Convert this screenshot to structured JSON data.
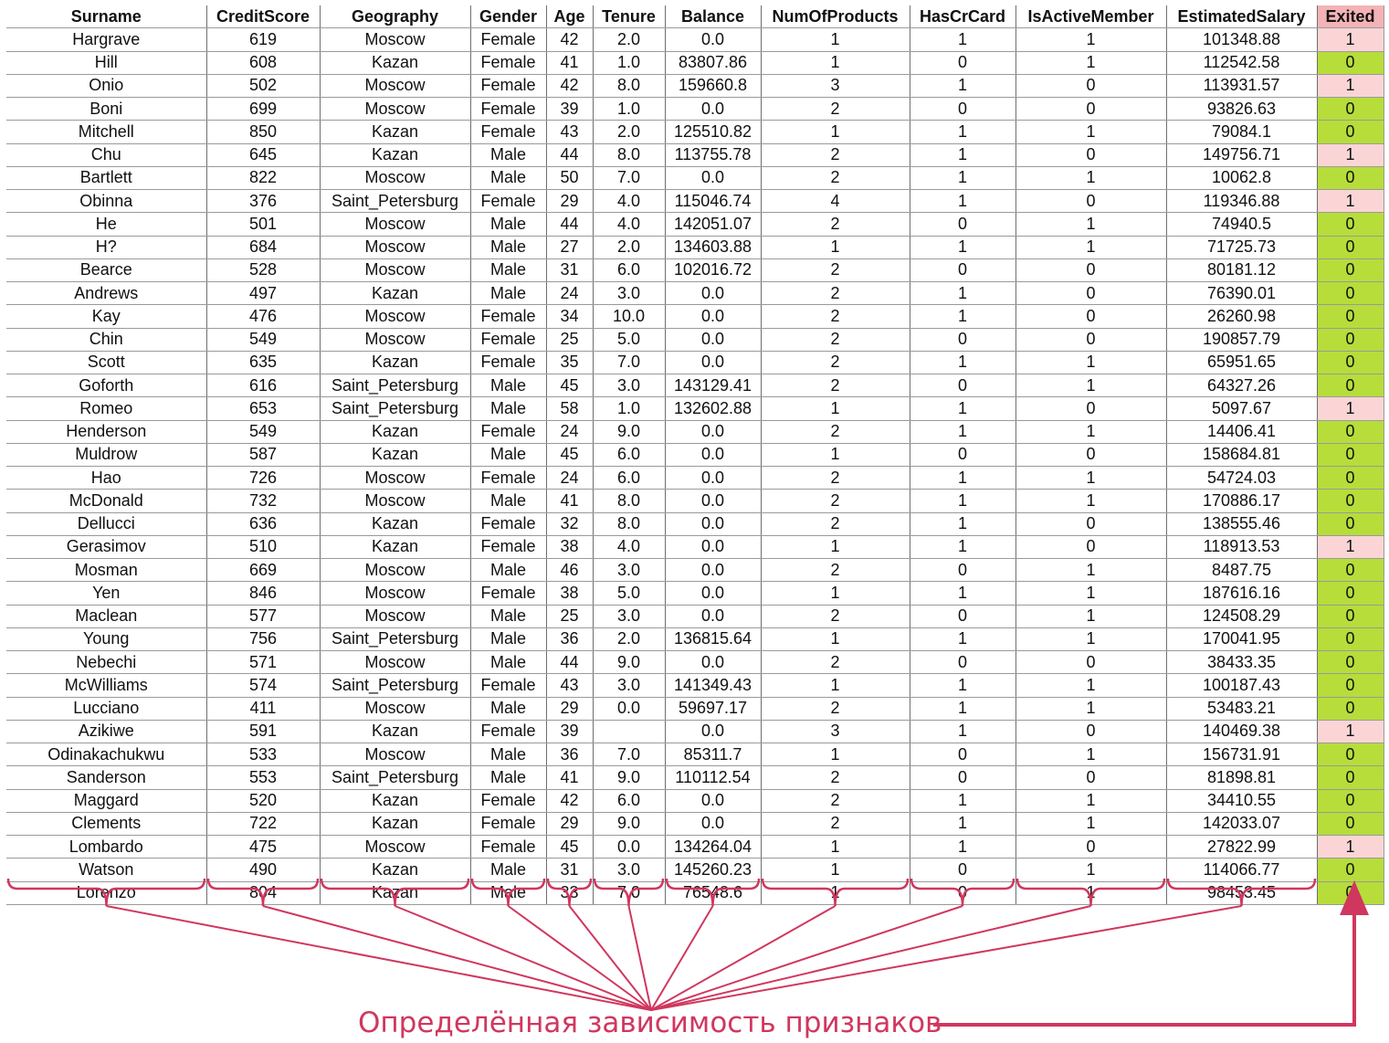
{
  "table": {
    "columns": [
      "Surname",
      "CreditScore",
      "Geography",
      "Gender",
      "Age",
      "Tenure",
      "Balance",
      "NumOfProducts",
      "HasCrCard",
      "IsActiveMember",
      "EstimatedSalary",
      "Exited"
    ],
    "rows": [
      [
        "Hargrave",
        "619",
        "Moscow",
        "Female",
        "42",
        "2.0",
        "0.0",
        "1",
        "1",
        "1",
        "101348.88",
        "1"
      ],
      [
        "Hill",
        "608",
        "Kazan",
        "Female",
        "41",
        "1.0",
        "83807.86",
        "1",
        "0",
        "1",
        "112542.58",
        "0"
      ],
      [
        "Onio",
        "502",
        "Moscow",
        "Female",
        "42",
        "8.0",
        "159660.8",
        "3",
        "1",
        "0",
        "113931.57",
        "1"
      ],
      [
        "Boni",
        "699",
        "Moscow",
        "Female",
        "39",
        "1.0",
        "0.0",
        "2",
        "0",
        "0",
        "93826.63",
        "0"
      ],
      [
        "Mitchell",
        "850",
        "Kazan",
        "Female",
        "43",
        "2.0",
        "125510.82",
        "1",
        "1",
        "1",
        "79084.1",
        "0"
      ],
      [
        "Chu",
        "645",
        "Kazan",
        "Male",
        "44",
        "8.0",
        "113755.78",
        "2",
        "1",
        "0",
        "149756.71",
        "1"
      ],
      [
        "Bartlett",
        "822",
        "Moscow",
        "Male",
        "50",
        "7.0",
        "0.0",
        "2",
        "1",
        "1",
        "10062.8",
        "0"
      ],
      [
        "Obinna",
        "376",
        "Saint_Petersburg",
        "Female",
        "29",
        "4.0",
        "115046.74",
        "4",
        "1",
        "0",
        "119346.88",
        "1"
      ],
      [
        "He",
        "501",
        "Moscow",
        "Male",
        "44",
        "4.0",
        "142051.07",
        "2",
        "0",
        "1",
        "74940.5",
        "0"
      ],
      [
        "H?",
        "684",
        "Moscow",
        "Male",
        "27",
        "2.0",
        "134603.88",
        "1",
        "1",
        "1",
        "71725.73",
        "0"
      ],
      [
        "Bearce",
        "528",
        "Moscow",
        "Male",
        "31",
        "6.0",
        "102016.72",
        "2",
        "0",
        "0",
        "80181.12",
        "0"
      ],
      [
        "Andrews",
        "497",
        "Kazan",
        "Male",
        "24",
        "3.0",
        "0.0",
        "2",
        "1",
        "0",
        "76390.01",
        "0"
      ],
      [
        "Kay",
        "476",
        "Moscow",
        "Female",
        "34",
        "10.0",
        "0.0",
        "2",
        "1",
        "0",
        "26260.98",
        "0"
      ],
      [
        "Chin",
        "549",
        "Moscow",
        "Female",
        "25",
        "5.0",
        "0.0",
        "2",
        "0",
        "0",
        "190857.79",
        "0"
      ],
      [
        "Scott",
        "635",
        "Kazan",
        "Female",
        "35",
        "7.0",
        "0.0",
        "2",
        "1",
        "1",
        "65951.65",
        "0"
      ],
      [
        "Goforth",
        "616",
        "Saint_Petersburg",
        "Male",
        "45",
        "3.0",
        "143129.41",
        "2",
        "0",
        "1",
        "64327.26",
        "0"
      ],
      [
        "Romeo",
        "653",
        "Saint_Petersburg",
        "Male",
        "58",
        "1.0",
        "132602.88",
        "1",
        "1",
        "0",
        "5097.67",
        "1"
      ],
      [
        "Henderson",
        "549",
        "Kazan",
        "Female",
        "24",
        "9.0",
        "0.0",
        "2",
        "1",
        "1",
        "14406.41",
        "0"
      ],
      [
        "Muldrow",
        "587",
        "Kazan",
        "Male",
        "45",
        "6.0",
        "0.0",
        "1",
        "0",
        "0",
        "158684.81",
        "0"
      ],
      [
        "Hao",
        "726",
        "Moscow",
        "Female",
        "24",
        "6.0",
        "0.0",
        "2",
        "1",
        "1",
        "54724.03",
        "0"
      ],
      [
        "McDonald",
        "732",
        "Moscow",
        "Male",
        "41",
        "8.0",
        "0.0",
        "2",
        "1",
        "1",
        "170886.17",
        "0"
      ],
      [
        "Dellucci",
        "636",
        "Kazan",
        "Female",
        "32",
        "8.0",
        "0.0",
        "2",
        "1",
        "0",
        "138555.46",
        "0"
      ],
      [
        "Gerasimov",
        "510",
        "Kazan",
        "Female",
        "38",
        "4.0",
        "0.0",
        "1",
        "1",
        "0",
        "118913.53",
        "1"
      ],
      [
        "Mosman",
        "669",
        "Moscow",
        "Male",
        "46",
        "3.0",
        "0.0",
        "2",
        "0",
        "1",
        "8487.75",
        "0"
      ],
      [
        "Yen",
        "846",
        "Moscow",
        "Female",
        "38",
        "5.0",
        "0.0",
        "1",
        "1",
        "1",
        "187616.16",
        "0"
      ],
      [
        "Maclean",
        "577",
        "Moscow",
        "Male",
        "25",
        "3.0",
        "0.0",
        "2",
        "0",
        "1",
        "124508.29",
        "0"
      ],
      [
        "Young",
        "756",
        "Saint_Petersburg",
        "Male",
        "36",
        "2.0",
        "136815.64",
        "1",
        "1",
        "1",
        "170041.95",
        "0"
      ],
      [
        "Nebechi",
        "571",
        "Moscow",
        "Male",
        "44",
        "9.0",
        "0.0",
        "2",
        "0",
        "0",
        "38433.35",
        "0"
      ],
      [
        "McWilliams",
        "574",
        "Saint_Petersburg",
        "Female",
        "43",
        "3.0",
        "141349.43",
        "1",
        "1",
        "1",
        "100187.43",
        "0"
      ],
      [
        "Lucciano",
        "411",
        "Moscow",
        "Male",
        "29",
        "0.0",
        "59697.17",
        "2",
        "1",
        "1",
        "53483.21",
        "0"
      ],
      [
        "Azikiwe",
        "591",
        "Kazan",
        "Female",
        "39",
        "",
        "0.0",
        "3",
        "1",
        "0",
        "140469.38",
        "1"
      ],
      [
        "Odinakachukwu",
        "533",
        "Moscow",
        "Male",
        "36",
        "7.0",
        "85311.7",
        "1",
        "0",
        "1",
        "156731.91",
        "0"
      ],
      [
        "Sanderson",
        "553",
        "Saint_Petersburg",
        "Male",
        "41",
        "9.0",
        "110112.54",
        "2",
        "0",
        "0",
        "81898.81",
        "0"
      ],
      [
        "Maggard",
        "520",
        "Kazan",
        "Female",
        "42",
        "6.0",
        "0.0",
        "2",
        "1",
        "1",
        "34410.55",
        "0"
      ],
      [
        "Clements",
        "722",
        "Kazan",
        "Female",
        "29",
        "9.0",
        "0.0",
        "2",
        "1",
        "1",
        "142033.07",
        "0"
      ],
      [
        "Lombardo",
        "475",
        "Moscow",
        "Female",
        "45",
        "0.0",
        "134264.04",
        "1",
        "1",
        "0",
        "27822.99",
        "1"
      ],
      [
        "Watson",
        "490",
        "Kazan",
        "Male",
        "31",
        "3.0",
        "145260.23",
        "1",
        "0",
        "1",
        "114066.77",
        "0"
      ],
      [
        "Lorenzo",
        "804",
        "Kazan",
        "Male",
        "33",
        "7.0",
        "76548.6",
        "1",
        "0",
        "1",
        "98453.45",
        "0"
      ]
    ]
  },
  "colors": {
    "exited_header": "#f4b3b6",
    "exited_1": "#fbd5d6",
    "exited_0": "#b6dd3a",
    "annotation": "#d0375e"
  },
  "annotation": {
    "caption": "Определённая зависимость признаков",
    "icons": [
      "brace-icon",
      "connector-line",
      "arrow-up-icon"
    ]
  }
}
